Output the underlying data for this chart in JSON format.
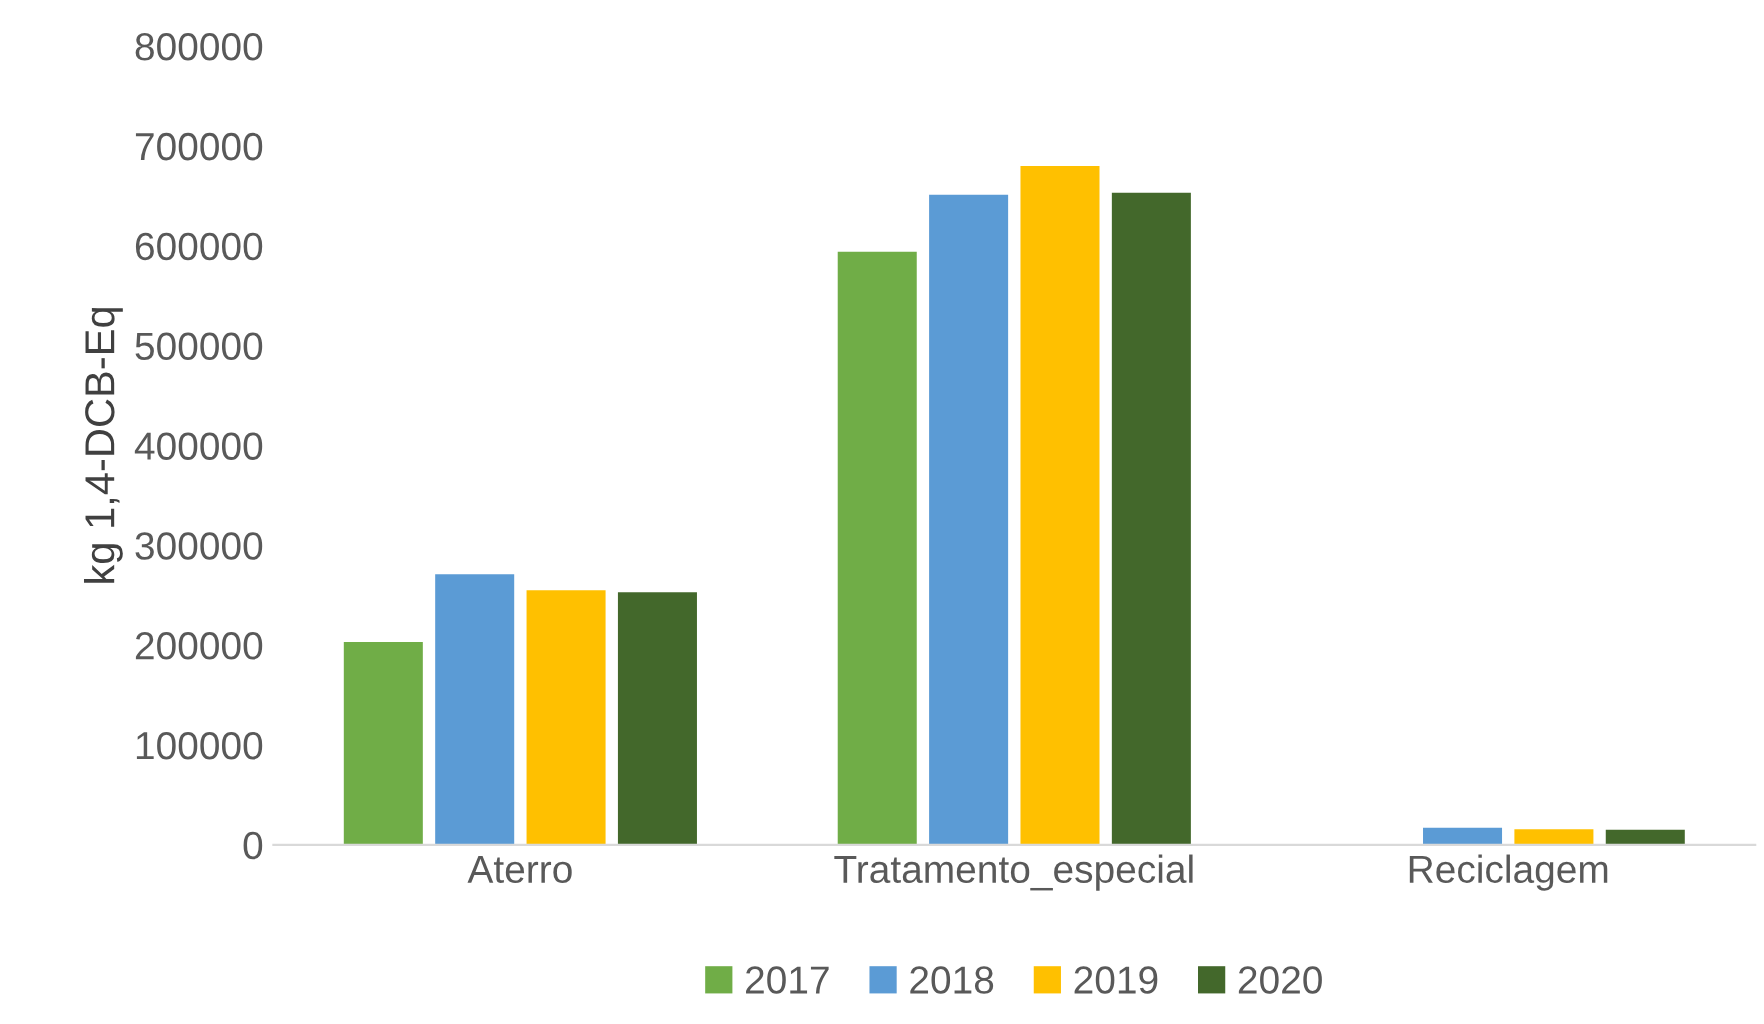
{
  "chart_data": {
    "type": "bar",
    "ylabel": "kg 1,4-DCB-Eq",
    "categories": [
      "Aterro",
      "Tratamento_especial",
      "Reciclagem"
    ],
    "series": [
      {
        "name": "2017",
        "color": "#70ad47",
        "values": [
          203000,
          594000,
          null
        ]
      },
      {
        "name": "2018",
        "color": "#5b9bd5",
        "values": [
          271000,
          651000,
          17000
        ]
      },
      {
        "name": "2019",
        "color": "#ffc000",
        "values": [
          255000,
          680000,
          15500
        ]
      },
      {
        "name": "2020",
        "color": "#43682b",
        "values": [
          253000,
          653000,
          15000
        ]
      }
    ],
    "ylim": [
      0,
      800000
    ],
    "yticks": [
      0,
      100000,
      200000,
      300000,
      400000,
      500000,
      600000,
      700000,
      800000
    ],
    "grid": false,
    "legend": "bottom"
  }
}
